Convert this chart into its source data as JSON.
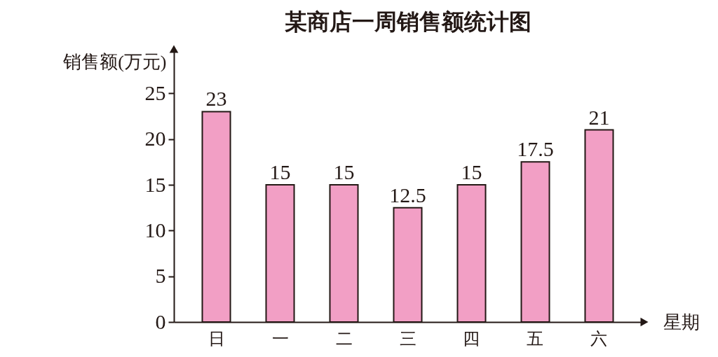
{
  "chart_data": {
    "type": "bar",
    "title": "某商店一周销售额统计图",
    "xlabel": "星期",
    "ylabel": "销售额(万元)",
    "categories": [
      "日",
      "一",
      "二",
      "三",
      "四",
      "五",
      "六"
    ],
    "values": [
      23,
      15,
      15,
      12.5,
      15,
      17.5,
      21
    ],
    "color": "#f29fc5",
    "ylim": [
      0,
      30
    ],
    "yticks": [
      0,
      5,
      10,
      15,
      20,
      25
    ],
    "data_labels": true
  }
}
